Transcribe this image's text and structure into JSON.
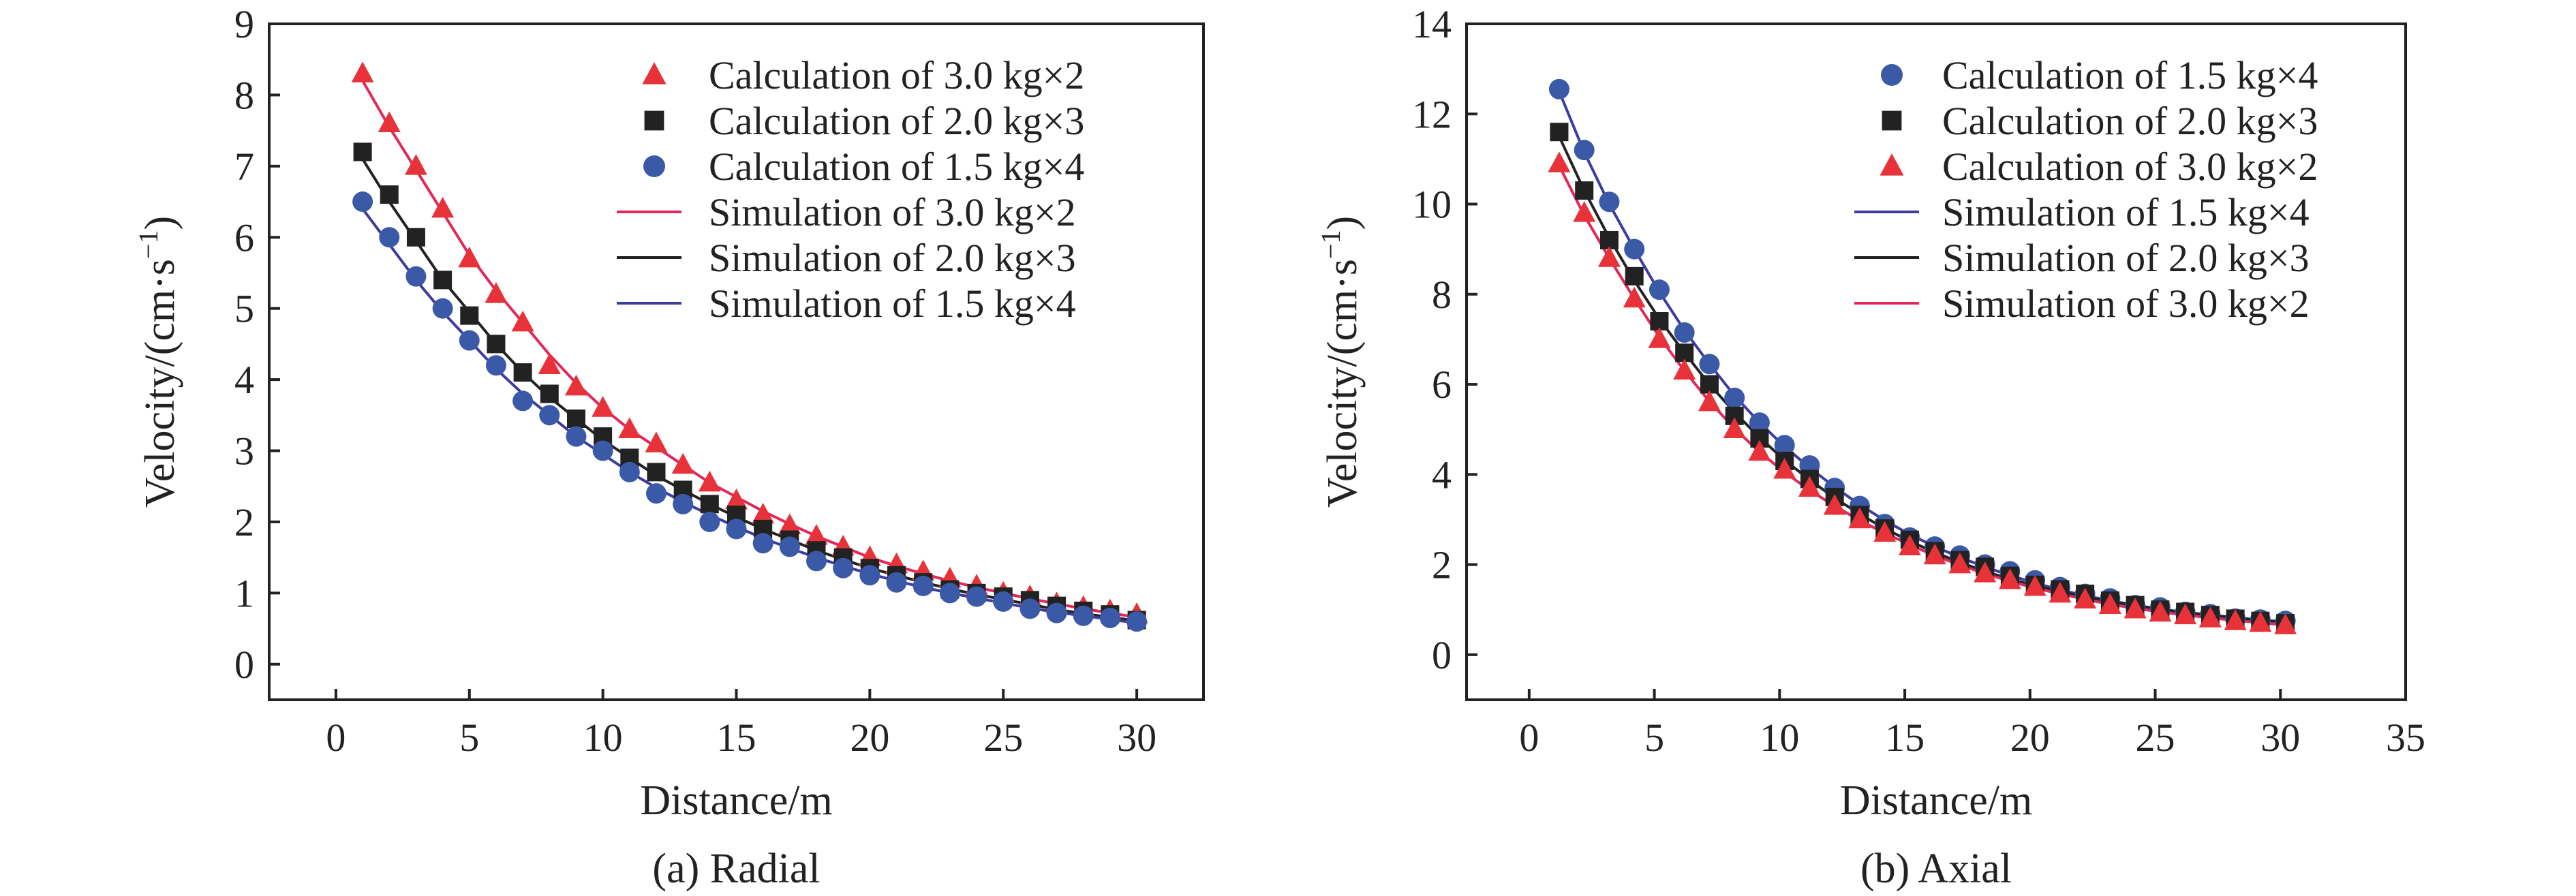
{
  "colors": {
    "red_marker": "#e8323a",
    "red_line": "#e0285a",
    "black": "#222222",
    "blue_marker": "#3a5aa8",
    "blue_line": "#3c3ca0"
  },
  "chart_data": [
    {
      "type": "scatter",
      "caption": "(a) Radial",
      "xlabel": "Distance/m",
      "ylabel": "Velocity/(cm·s",
      "ylabel_sup": "−1",
      "ylabel_end": ")",
      "xlim": [
        -2.5,
        32.5
      ],
      "ylim": [
        -0.5,
        9
      ],
      "xticks": [
        0,
        5,
        10,
        15,
        20,
        25,
        30
      ],
      "yticks": [
        0,
        1,
        2,
        3,
        4,
        5,
        6,
        7,
        8,
        9
      ],
      "legend_position": "top-right",
      "x": [
        1,
        2,
        3,
        4,
        5,
        6,
        7,
        8,
        9,
        10,
        11,
        12,
        13,
        14,
        15,
        16,
        17,
        18,
        19,
        20,
        21,
        22,
        23,
        24,
        25,
        26,
        27,
        28,
        29,
        30
      ],
      "series": [
        {
          "name": "Calculation of 3.0 kg×2",
          "kind": "marker",
          "marker": "triangle",
          "color": "#e8323a",
          "values": [
            8.3,
            7.6,
            7.0,
            6.4,
            5.7,
            5.2,
            4.8,
            4.2,
            3.9,
            3.6,
            3.3,
            3.1,
            2.8,
            2.55,
            2.3,
            2.1,
            1.95,
            1.8,
            1.65,
            1.5,
            1.4,
            1.3,
            1.2,
            1.1,
            1.0,
            0.95,
            0.85,
            0.8,
            0.75,
            0.7
          ]
        },
        {
          "name": "Calculation of 2.0 kg×3",
          "kind": "marker",
          "marker": "square",
          "color": "#222222",
          "values": [
            7.2,
            6.6,
            6.0,
            5.4,
            4.9,
            4.5,
            4.1,
            3.8,
            3.45,
            3.2,
            2.9,
            2.7,
            2.45,
            2.25,
            2.1,
            1.9,
            1.75,
            1.6,
            1.5,
            1.35,
            1.25,
            1.15,
            1.05,
            1.0,
            0.95,
            0.9,
            0.82,
            0.75,
            0.7,
            0.62
          ]
        },
        {
          "name": "Calculation of 1.5 kg×4",
          "kind": "marker",
          "marker": "circle",
          "color": "#3a5aa8",
          "values": [
            6.5,
            6.0,
            5.45,
            5.0,
            4.55,
            4.2,
            3.7,
            3.5,
            3.2,
            3.0,
            2.7,
            2.4,
            2.25,
            2.0,
            1.9,
            1.7,
            1.65,
            1.45,
            1.35,
            1.25,
            1.15,
            1.1,
            1.0,
            0.95,
            0.88,
            0.78,
            0.72,
            0.68,
            0.65,
            0.6
          ]
        },
        {
          "name": "Simulation of 3.0 kg×2",
          "kind": "line",
          "color": "#e0285a",
          "values": [
            8.2,
            7.55,
            6.95,
            6.35,
            5.75,
            5.25,
            4.8,
            4.35,
            3.95,
            3.6,
            3.3,
            3.05,
            2.8,
            2.55,
            2.35,
            2.15,
            1.97,
            1.8,
            1.65,
            1.5,
            1.38,
            1.27,
            1.17,
            1.08,
            1.0,
            0.92,
            0.85,
            0.78,
            0.72,
            0.66
          ]
        },
        {
          "name": "Simulation of 2.0 kg×3",
          "kind": "line",
          "color": "#222222",
          "values": [
            7.1,
            6.5,
            5.95,
            5.4,
            4.95,
            4.5,
            4.1,
            3.75,
            3.45,
            3.15,
            2.9,
            2.65,
            2.45,
            2.25,
            2.07,
            1.9,
            1.75,
            1.6,
            1.47,
            1.35,
            1.25,
            1.15,
            1.06,
            0.98,
            0.91,
            0.84,
            0.77,
            0.71,
            0.66,
            0.61
          ]
        },
        {
          "name": "Simulation of 1.5 kg×4",
          "kind": "line",
          "color": "#3c3ca0",
          "values": [
            6.4,
            5.9,
            5.4,
            4.95,
            4.55,
            4.15,
            3.8,
            3.5,
            3.2,
            2.95,
            2.7,
            2.48,
            2.28,
            2.1,
            1.93,
            1.77,
            1.63,
            1.5,
            1.38,
            1.27,
            1.17,
            1.08,
            1.0,
            0.93,
            0.86,
            0.79,
            0.73,
            0.68,
            0.63,
            0.58
          ]
        }
      ]
    },
    {
      "type": "scatter",
      "caption": "(b) Axial",
      "xlabel": "Distance/m",
      "ylabel": "Velocity/(cm·s",
      "ylabel_sup": "−1",
      "ylabel_end": ")",
      "xlim": [
        -2.5,
        35
      ],
      "ylim": [
        -1,
        14
      ],
      "xticks": [
        0,
        5,
        10,
        15,
        20,
        25,
        30,
        35
      ],
      "yticks": [
        0,
        2,
        4,
        6,
        8,
        10,
        12,
        14
      ],
      "legend_position": "top-right",
      "x": [
        1.2,
        2.2,
        3.2,
        4.2,
        5.2,
        6.2,
        7.2,
        8.2,
        9.2,
        10.2,
        11.2,
        12.2,
        13.2,
        14.2,
        15.2,
        16.2,
        17.2,
        18.2,
        19.2,
        20.2,
        21.2,
        22.2,
        23.2,
        24.2,
        25.2,
        26.2,
        27.2,
        28.2,
        29.2,
        30.2
      ],
      "series": [
        {
          "name": "Calculation of 1.5 kg×4",
          "kind": "marker",
          "marker": "circle",
          "color": "#3a5aa8",
          "values": [
            12.55,
            11.2,
            10.05,
            9.0,
            8.1,
            7.15,
            6.45,
            5.7,
            5.15,
            4.65,
            4.2,
            3.7,
            3.3,
            2.9,
            2.6,
            2.4,
            2.2,
            2.0,
            1.85,
            1.65,
            1.5,
            1.35,
            1.25,
            1.1,
            1.05,
            0.95,
            0.9,
            0.8,
            0.78,
            0.75
          ]
        },
        {
          "name": "Calculation of 2.0 kg×3",
          "kind": "marker",
          "marker": "square",
          "color": "#222222",
          "values": [
            11.6,
            10.3,
            9.2,
            8.4,
            7.4,
            6.7,
            6.0,
            5.3,
            4.8,
            4.3,
            3.9,
            3.5,
            3.1,
            2.8,
            2.55,
            2.3,
            2.1,
            1.95,
            1.75,
            1.55,
            1.45,
            1.35,
            1.2,
            1.1,
            1.0,
            0.95,
            0.88,
            0.8,
            0.75,
            0.7
          ]
        },
        {
          "name": "Calculation of 3.0 kg×2",
          "kind": "marker",
          "marker": "triangle",
          "color": "#e8323a",
          "values": [
            10.9,
            9.8,
            8.8,
            7.9,
            7.0,
            6.3,
            5.6,
            5.0,
            4.5,
            4.1,
            3.7,
            3.3,
            3.0,
            2.7,
            2.4,
            2.2,
            2.0,
            1.8,
            1.65,
            1.5,
            1.35,
            1.22,
            1.1,
            1.0,
            0.93,
            0.87,
            0.8,
            0.74,
            0.7,
            0.65
          ]
        },
        {
          "name": "Simulation of 1.5 kg×4",
          "kind": "line",
          "color": "#3c3ca0",
          "values": [
            12.5,
            11.15,
            10.0,
            9.0,
            8.05,
            7.2,
            6.45,
            5.75,
            5.15,
            4.62,
            4.15,
            3.72,
            3.33,
            2.98,
            2.67,
            2.4,
            2.16,
            1.95,
            1.76,
            1.59,
            1.44,
            1.31,
            1.2,
            1.1,
            1.01,
            0.94,
            0.88,
            0.82,
            0.77,
            0.73
          ]
        },
        {
          "name": "Simulation of 2.0 kg×3",
          "kind": "line",
          "color": "#222222",
          "values": [
            11.5,
            10.3,
            9.25,
            8.3,
            7.45,
            6.7,
            6.0,
            5.38,
            4.82,
            4.32,
            3.88,
            3.48,
            3.12,
            2.8,
            2.52,
            2.27,
            2.05,
            1.85,
            1.68,
            1.53,
            1.4,
            1.28,
            1.18,
            1.09,
            1.01,
            0.94,
            0.88,
            0.82,
            0.77,
            0.72
          ]
        },
        {
          "name": "Simulation of 3.0 kg×2",
          "kind": "line",
          "color": "#e0285a",
          "values": [
            10.85,
            9.75,
            8.8,
            7.9,
            7.05,
            6.3,
            5.62,
            5.02,
            4.5,
            4.05,
            3.65,
            3.3,
            2.98,
            2.7,
            2.44,
            2.2,
            1.99,
            1.8,
            1.63,
            1.48,
            1.35,
            1.23,
            1.12,
            1.03,
            0.95,
            0.88,
            0.82,
            0.76,
            0.71,
            0.66
          ]
        }
      ]
    }
  ]
}
